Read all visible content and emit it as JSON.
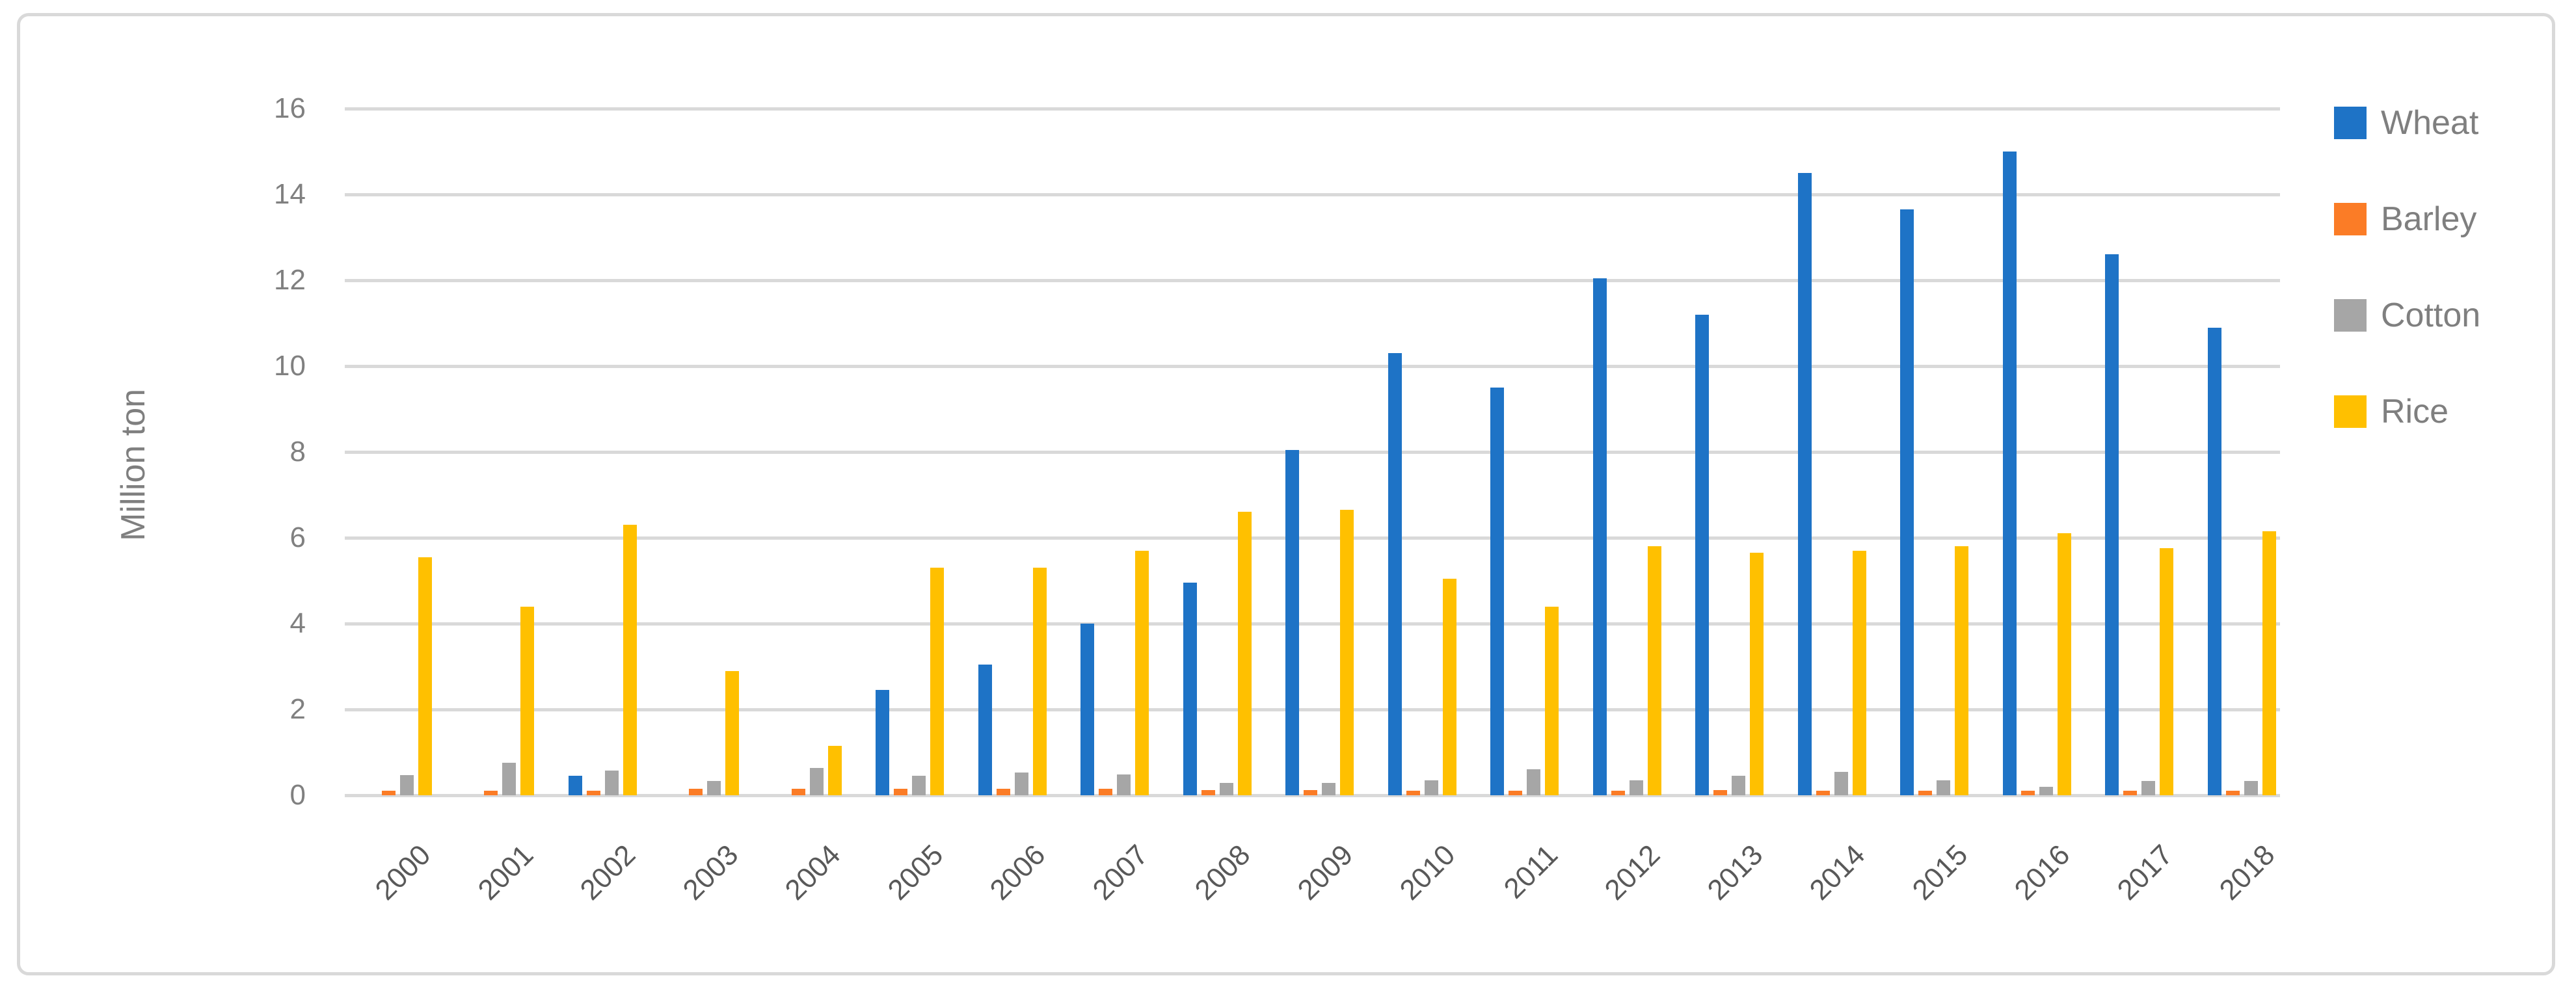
{
  "chart_data": {
    "type": "bar",
    "title": "",
    "xlabel": "",
    "ylabel": "Million ton",
    "categories": [
      "2000",
      "2001",
      "2002",
      "2003",
      "2004",
      "2005",
      "2006",
      "2007",
      "2008",
      "2009",
      "2010",
      "2011",
      "2012",
      "2013",
      "2014",
      "2015",
      "2016",
      "2017",
      "2018"
    ],
    "series": [
      {
        "name": "Wheat",
        "color": "#1E73C6",
        "values": [
          0,
          0,
          0.45,
          0,
          0,
          2.45,
          3.05,
          4.0,
          4.95,
          8.05,
          10.3,
          9.5,
          12.05,
          11.2,
          14.5,
          13.65,
          15.0,
          12.6,
          10.9
        ]
      },
      {
        "name": "Barley",
        "color": "#FB7C26",
        "values": [
          0.1,
          0.1,
          0.1,
          0.15,
          0.15,
          0.15,
          0.15,
          0.15,
          0.12,
          0.12,
          0.1,
          0.1,
          0.1,
          0.12,
          0.1,
          0.1,
          0.1,
          0.1,
          0.1
        ]
      },
      {
        "name": "Cotton",
        "color": "#A6A6A6",
        "values": [
          0.47,
          0.75,
          0.57,
          0.33,
          0.64,
          0.45,
          0.53,
          0.48,
          0.29,
          0.29,
          0.35,
          0.6,
          0.35,
          0.45,
          0.54,
          0.35,
          0.19,
          0.33,
          0.33
        ]
      },
      {
        "name": "Rice",
        "color": "#FFC000",
        "values": [
          5.55,
          4.4,
          6.3,
          2.9,
          1.15,
          5.3,
          5.3,
          5.7,
          6.6,
          6.65,
          5.05,
          4.4,
          5.8,
          5.65,
          5.7,
          5.8,
          6.1,
          5.75,
          6.15
        ]
      }
    ],
    "ylim": [
      0,
      16
    ],
    "yticks": [
      0,
      2,
      4,
      6,
      8,
      10,
      12,
      14,
      16
    ],
    "grid": true,
    "legend_position": "right",
    "gridline_color": "#D9D9D9"
  }
}
